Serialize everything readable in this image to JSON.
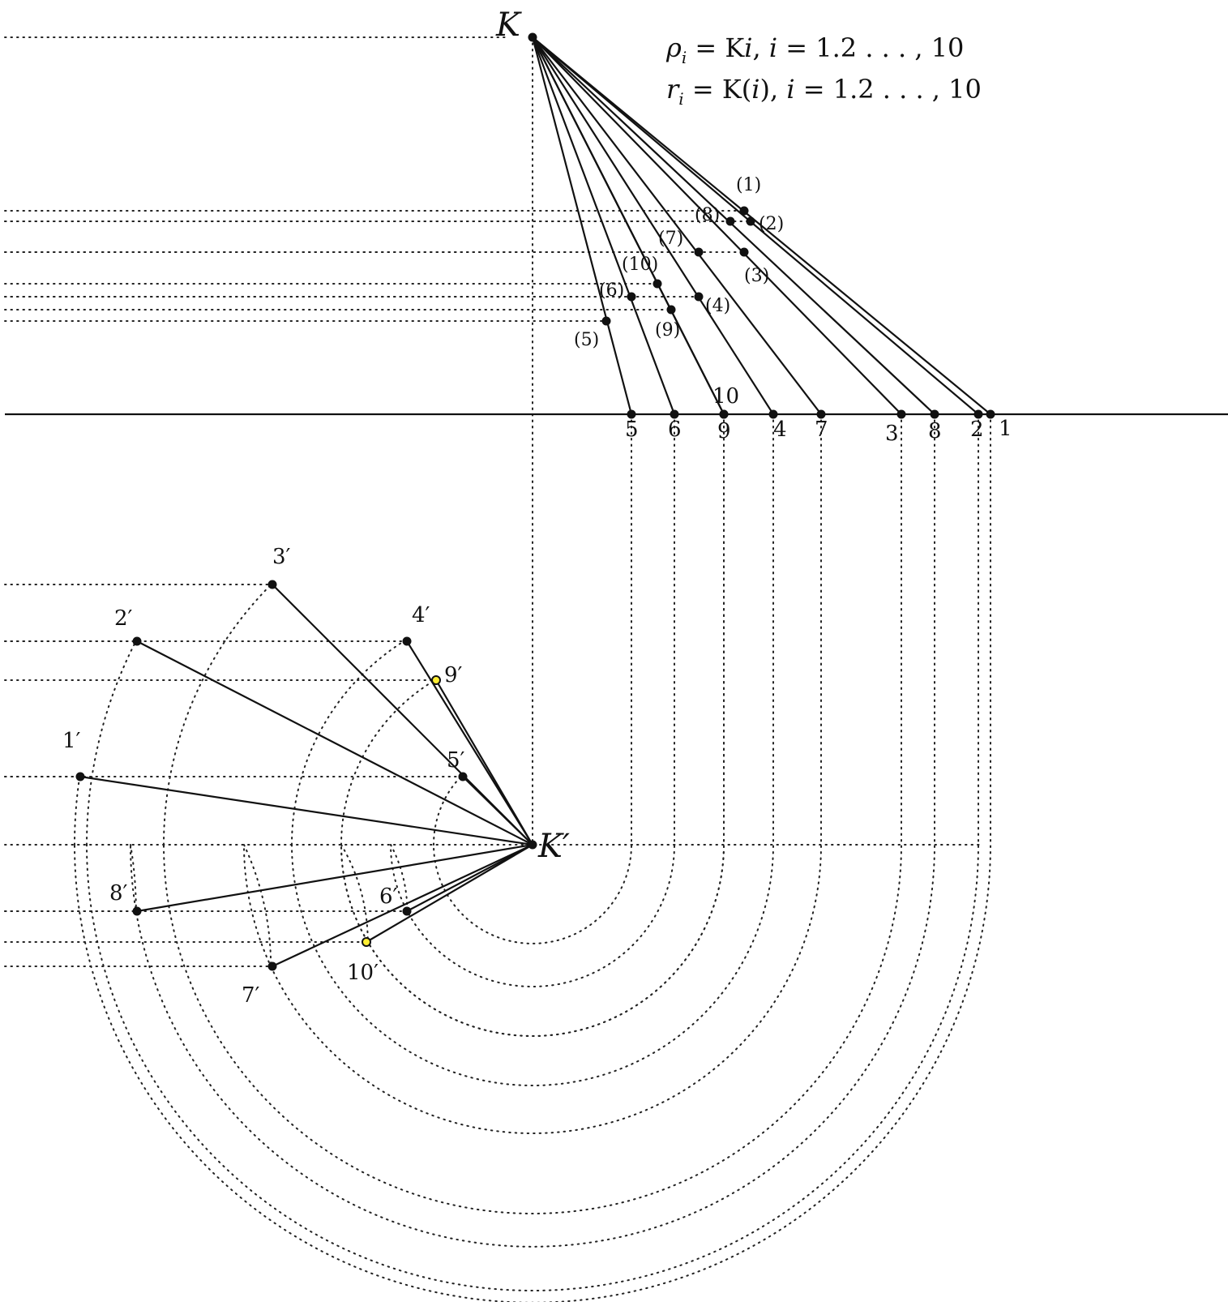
{
  "apex_top": "K",
  "apex_bottom": "K′",
  "equations": [
    {
      "lhs": "ρ",
      "sub": "i",
      "rhs": " = K",
      "var": "i",
      "tail": ", ",
      "ivar": "i",
      "range": " = 1.2 . . . , 10"
    },
    {
      "lhs": "r",
      "sub": "i",
      "rhs": " = K(",
      "var": "i",
      "tail": "), ",
      "ivar": "i",
      "range": " = 1.2 . . . , 10"
    }
  ],
  "points": [
    {
      "id": "1",
      "front": "(1)",
      "ground": "1",
      "plan": "1′",
      "highlight": false
    },
    {
      "id": "2",
      "front": "(2)",
      "ground": "2",
      "plan": "2′",
      "highlight": false
    },
    {
      "id": "3",
      "front": "(3)",
      "ground": "3",
      "plan": "3′",
      "highlight": false
    },
    {
      "id": "4",
      "front": "(4)",
      "ground": "4",
      "plan": "4′",
      "highlight": false
    },
    {
      "id": "5",
      "front": "(5)",
      "ground": "5",
      "plan": "5′",
      "highlight": false
    },
    {
      "id": "6",
      "front": "(6)",
      "ground": "6",
      "plan": "6′",
      "highlight": false
    },
    {
      "id": "7",
      "front": "(7)",
      "ground": "7",
      "plan": "7′",
      "highlight": false
    },
    {
      "id": "8",
      "front": "(8)",
      "ground": "8",
      "plan": "8′",
      "highlight": false
    },
    {
      "id": "9",
      "front": "(9)",
      "ground": "9",
      "plan": "9′",
      "highlight": true
    },
    {
      "id": "10",
      "front": "(10)",
      "ground": "10",
      "plan": "10′",
      "highlight": true
    }
  ],
  "colors": {
    "line": "#111111",
    "highlight": "#ffee33"
  }
}
